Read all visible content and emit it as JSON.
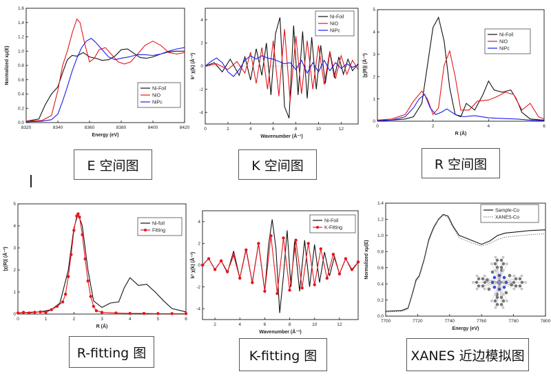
{
  "captions": [
    "E 空间图",
    "K 空间图",
    "R 空间图",
    "R-fitting 图",
    "K-fitting 图",
    "XANES 近边模拟图"
  ],
  "colors": {
    "black": "#111111",
    "red": "#e8141b",
    "blue": "#1a1aee",
    "gray": "#888888"
  },
  "chart_data": [
    {
      "type": "line",
      "xlabel": "Energy (eV)",
      "ylabel": "Normalized xμ(E)",
      "xlim": [
        8320,
        8420
      ],
      "ylim": [
        0,
        1.6
      ],
      "xticks": [
        8320,
        8340,
        8360,
        8380,
        8400,
        8420
      ],
      "yticks": [
        0,
        0.2,
        0.4,
        0.6,
        0.8,
        1.0,
        1.2,
        1.4,
        1.6
      ],
      "legend": "center-right",
      "series": [
        {
          "name": "Ni-Foil",
          "color": "#111111",
          "x": [
            8320,
            8328,
            8332,
            8336,
            8340,
            8343,
            8346,
            8349,
            8352,
            8356,
            8360,
            8364,
            8368,
            8372,
            8376,
            8380,
            8384,
            8388,
            8392,
            8396,
            8400,
            8405,
            8410,
            8415,
            8420
          ],
          "y": [
            0.02,
            0.05,
            0.25,
            0.4,
            0.5,
            0.7,
            0.88,
            0.94,
            0.93,
            0.98,
            0.92,
            0.9,
            0.87,
            0.88,
            0.93,
            1.02,
            1.03,
            0.97,
            0.91,
            0.9,
            0.92,
            0.96,
            0.99,
            1.0,
            1.0
          ]
        },
        {
          "name": "NiO",
          "color": "#e8141b",
          "x": [
            8320,
            8330,
            8336,
            8340,
            8343,
            8346,
            8349,
            8352,
            8354,
            8357,
            8360,
            8363,
            8366,
            8370,
            8374,
            8378,
            8382,
            8386,
            8390,
            8395,
            8400,
            8405,
            8410,
            8415,
            8420
          ],
          "y": [
            0.02,
            0.03,
            0.1,
            0.45,
            0.8,
            1.0,
            1.25,
            1.45,
            1.4,
            1.1,
            0.85,
            0.9,
            1.02,
            1.05,
            0.95,
            0.85,
            0.82,
            0.85,
            0.95,
            1.08,
            1.14,
            1.08,
            0.98,
            0.96,
            0.98
          ]
        },
        {
          "name": "NiPc",
          "color": "#1a1aee",
          "x": [
            8320,
            8330,
            8336,
            8340,
            8343,
            8346,
            8349,
            8352,
            8355,
            8358,
            8361,
            8364,
            8368,
            8372,
            8376,
            8380,
            8385,
            8390,
            8395,
            8400,
            8405,
            8410,
            8415,
            8420
          ],
          "y": [
            0.01,
            0.02,
            0.04,
            0.12,
            0.3,
            0.5,
            0.72,
            0.9,
            1.05,
            1.14,
            1.18,
            1.12,
            1.02,
            0.92,
            0.88,
            0.9,
            0.92,
            0.95,
            0.95,
            0.94,
            0.96,
            1.0,
            1.03,
            1.05
          ]
        }
      ]
    },
    {
      "type": "line",
      "xlabel": "Wavenumber (Å⁻¹)",
      "ylabel": "k² χ(k) (Å⁻²)",
      "xlim": [
        0,
        13.5
      ],
      "ylim": [
        -5,
        5
      ],
      "xticks": [
        0,
        2,
        4,
        6,
        8,
        10,
        12
      ],
      "yticks": [
        -4,
        -2,
        0,
        2,
        4
      ],
      "legend": "top-right",
      "series": [
        {
          "name": "Ni-Foil",
          "color": "#111111",
          "x": [
            0,
            0.8,
            1.5,
            2.2,
            3,
            3.5,
            4,
            4.5,
            5,
            5.4,
            5.8,
            6.2,
            6.6,
            7,
            7.4,
            7.8,
            8.2,
            8.6,
            9,
            9.4,
            9.8,
            10.2,
            10.6,
            11,
            11.4,
            11.8,
            12.2,
            12.6,
            13,
            13.5
          ],
          "y": [
            0,
            0.3,
            -0.5,
            0.6,
            -0.8,
            0.8,
            -1.2,
            1.5,
            -0.8,
            2.0,
            -2.5,
            2.8,
            4.2,
            -3.5,
            -4.5,
            3.5,
            -2.5,
            3.0,
            -2.8,
            2.5,
            -2.0,
            1.8,
            -1.5,
            1.2,
            -1.0,
            0.8,
            -0.7,
            0.6,
            -0.4,
            0.2
          ]
        },
        {
          "name": "NiO",
          "color": "#e8141b",
          "x": [
            0,
            1,
            2,
            2.8,
            3.5,
            4,
            4.5,
            5,
            5.5,
            6,
            6.5,
            7,
            7.5,
            8,
            8.5,
            9,
            9.5,
            10,
            10.5,
            11,
            11.5,
            12,
            12.5,
            13,
            13.5
          ],
          "y": [
            0,
            0.2,
            -0.3,
            0.4,
            -0.6,
            1.2,
            -1.5,
            1.6,
            -2.0,
            2.2,
            -2.6,
            3.2,
            -3.0,
            2.6,
            -2.4,
            2.2,
            -2.0,
            1.8,
            -1.6,
            1.3,
            -1.1,
            0.9,
            -0.7,
            0.5,
            -0.3
          ]
        },
        {
          "name": "NiPc",
          "color": "#1a1aee",
          "x": [
            0,
            0.5,
            1,
            1.5,
            2,
            2.5,
            3,
            3.5,
            4,
            4.5,
            5,
            5.5,
            6,
            6.5,
            7,
            7.5,
            8,
            8.5,
            9,
            9.5,
            10,
            10.5,
            11,
            11.5,
            12,
            12.5,
            13,
            13.5
          ],
          "y": [
            0,
            0.4,
            0.7,
            0.3,
            -0.5,
            -0.9,
            -0.3,
            0.5,
            0.9,
            0.6,
            0.9,
            0.7,
            0.6,
            0.4,
            0.2,
            0.3,
            -0.3,
            0.5,
            -0.6,
            0.3,
            -0.5,
            0.5,
            -0.4,
            0.3,
            -0.2,
            0.2,
            -0.1,
            0.1
          ]
        }
      ]
    },
    {
      "type": "line",
      "xlabel": "R (Å)",
      "ylabel": "|χ(R)| (Å⁻³)",
      "xlim": [
        0,
        6
      ],
      "ylim": [
        0,
        5
      ],
      "xticks": [
        0,
        2,
        4,
        6
      ],
      "yticks": [
        0,
        1,
        2,
        3,
        4,
        5
      ],
      "legend": "top-right",
      "series": [
        {
          "name": "Ni-Foil",
          "color": "#111111",
          "x": [
            0,
            0.5,
            1,
            1.3,
            1.6,
            1.8,
            2,
            2.2,
            2.4,
            2.6,
            2.8,
            3,
            3.2,
            3.5,
            3.8,
            4,
            4.2,
            4.5,
            4.8,
            5,
            5.2,
            5.5,
            6
          ],
          "y": [
            0.05,
            0.05,
            0.1,
            0.2,
            0.8,
            2.5,
            4.2,
            4.65,
            3.6,
            1.5,
            0.3,
            0.2,
            0.8,
            0.5,
            1.2,
            1.8,
            1.4,
            1.3,
            1.4,
            1.0,
            0.4,
            0.1,
            0.05
          ]
        },
        {
          "name": "NiO",
          "color": "#e8141b",
          "x": [
            0,
            0.5,
            1,
            1.3,
            1.6,
            1.8,
            2,
            2.2,
            2.4,
            2.6,
            2.8,
            3,
            3.3,
            3.6,
            4,
            4.3,
            4.6,
            4.9,
            5.2,
            5.5,
            5.8,
            6
          ],
          "y": [
            0.05,
            0.1,
            0.3,
            0.9,
            1.35,
            1.0,
            0.3,
            0.6,
            2.5,
            3.15,
            2.0,
            0.5,
            0.5,
            0.9,
            0.95,
            1.1,
            1.3,
            1.2,
            0.5,
            0.8,
            0.2,
            0.1
          ]
        },
        {
          "name": "NiPc",
          "color": "#1a1aee",
          "x": [
            0,
            0.5,
            1,
            1.3,
            1.5,
            1.7,
            1.9,
            2.1,
            2.3,
            2.5,
            2.8,
            3.1,
            3.5,
            4,
            4.5,
            5,
            5.5,
            6
          ],
          "y": [
            0.02,
            0.05,
            0.2,
            0.6,
            1.0,
            1.2,
            0.6,
            0.3,
            0.4,
            0.55,
            0.3,
            0.2,
            0.25,
            0.15,
            0.12,
            0.1,
            0.05,
            0.02
          ]
        }
      ]
    },
    {
      "type": "line",
      "xlabel": "R (Å)",
      "ylabel": "|χ(R)| (Å⁻³)",
      "xlim": [
        0,
        6
      ],
      "ylim": [
        0,
        5
      ],
      "xticks": [
        0,
        1,
        2,
        3,
        4,
        5,
        6
      ],
      "yticks": [
        0,
        1,
        2,
        3,
        4,
        5
      ],
      "legend": "top-right",
      "series": [
        {
          "name": "Ni-foil",
          "color": "#111111",
          "x": [
            0,
            0.4,
            0.8,
            1.2,
            1.5,
            1.8,
            2.0,
            2.15,
            2.3,
            2.5,
            2.7,
            3.0,
            3.3,
            3.6,
            3.8,
            4.0,
            4.3,
            4.6,
            4.9,
            5.2,
            5.5,
            6
          ],
          "y": [
            0.05,
            0.08,
            0.1,
            0.2,
            0.5,
            2.0,
            3.9,
            4.55,
            4.0,
            2.0,
            0.6,
            0.3,
            0.5,
            0.55,
            1.2,
            1.65,
            1.3,
            1.35,
            1.0,
            0.6,
            0.25,
            0.1
          ]
        },
        {
          "name": "Fitting",
          "color": "#e8141b",
          "x": [
            0,
            0.2,
            0.4,
            0.6,
            0.8,
            1.0,
            1.2,
            1.4,
            1.6,
            1.7,
            1.8,
            1.9,
            2.0,
            2.1,
            2.15,
            2.2,
            2.3,
            2.4,
            2.5,
            2.6,
            2.7,
            2.8,
            3.0,
            3.5,
            4.0,
            4.5,
            5.0,
            5.5,
            6.0
          ],
          "y": [
            0.05,
            0.08,
            0.05,
            0.08,
            0.1,
            0.08,
            0.2,
            0.35,
            0.55,
            0.9,
            1.7,
            2.7,
            3.8,
            4.45,
            4.55,
            4.4,
            3.6,
            2.5,
            1.5,
            0.8,
            0.35,
            0.15,
            0.08,
            0.05,
            0.03,
            0.03,
            0.02,
            0.02,
            0.02
          ]
        }
      ]
    },
    {
      "type": "line",
      "xlabel": "Wavenumber (Å⁻¹)",
      "ylabel": "k² χ(k) (Å⁻²)",
      "xlim": [
        1,
        13.5
      ],
      "ylim": [
        -5,
        5
      ],
      "xticks": [
        2,
        4,
        6,
        8,
        10,
        12
      ],
      "yticks": [
        -4,
        -2,
        0,
        2,
        4
      ],
      "legend": "top-right",
      "series": [
        {
          "name": "Ni-Foil",
          "color": "#111111",
          "x": [
            1,
            1.5,
            2,
            2.5,
            3,
            3.5,
            4,
            4.5,
            5,
            5.5,
            6,
            6.3,
            6.6,
            6.9,
            7.2,
            7.5,
            7.8,
            8.1,
            8.4,
            8.8,
            9.2,
            9.6,
            10,
            10.4,
            10.8,
            11.2,
            11.6,
            12,
            12.5,
            13,
            13.5
          ],
          "y": [
            0,
            0.6,
            -0.4,
            0.4,
            -0.7,
            1.3,
            -1.2,
            1.5,
            -1.6,
            2.0,
            -2.4,
            1.8,
            4.2,
            1.5,
            -4.4,
            -1.0,
            3.2,
            -2.0,
            2.2,
            -2.4,
            2.3,
            -2.0,
            1.9,
            -1.6,
            1.2,
            -1.0,
            0.8,
            -0.8,
            0.6,
            -0.5,
            0.3
          ]
        },
        {
          "name": "K-Fitting",
          "color": "#e8141b",
          "x": [
            1,
            1.5,
            2,
            2.5,
            3,
            3.5,
            4,
            4.5,
            5,
            5.5,
            6,
            6.5,
            7,
            7.5,
            8,
            8.5,
            9,
            9.5,
            10,
            10.5,
            11,
            11.5,
            12,
            12.5,
            13,
            13.5
          ],
          "y": [
            0,
            0.6,
            -0.4,
            0.4,
            -0.6,
            0.9,
            -1.2,
            1.4,
            -1.6,
            2.0,
            -2.4,
            2.7,
            -2.6,
            2.5,
            -2.3,
            2.3,
            -2.1,
            2.0,
            -1.8,
            1.5,
            -1.2,
            1.0,
            -0.8,
            0.6,
            -0.4,
            0.3
          ]
        }
      ]
    },
    {
      "type": "line",
      "xlabel": "Energy (eV)",
      "ylabel": "Normalized xμ(E)",
      "xlim": [
        7700,
        7800
      ],
      "ylim": [
        0,
        1.4
      ],
      "xticks": [
        7700,
        7720,
        7740,
        7760,
        7780,
        7800
      ],
      "yticks": [
        0,
        0.2,
        0.4,
        0.6,
        0.8,
        1.0,
        1.2,
        1.4
      ],
      "legend": "top-right",
      "series": [
        {
          "name": "Sample-Co",
          "color": "#111111",
          "x": [
            7700,
            7710,
            7714,
            7717,
            7719,
            7721,
            7724,
            7727,
            7730,
            7733,
            7736,
            7739,
            7742,
            7746,
            7750,
            7755,
            7760,
            7765,
            7770,
            7775,
            7780,
            7790,
            7800
          ],
          "y": [
            0.06,
            0.07,
            0.1,
            0.3,
            0.45,
            0.5,
            0.7,
            0.95,
            1.1,
            1.2,
            1.26,
            1.24,
            1.12,
            1.0,
            0.97,
            0.93,
            0.89,
            0.93,
            1.0,
            1.03,
            1.04,
            1.06,
            1.07
          ]
        },
        {
          "name": "XANES-Co",
          "color": "#888888",
          "dashed": true,
          "x": [
            7700,
            7710,
            7714,
            7717,
            7719,
            7721,
            7724,
            7727,
            7730,
            7733,
            7736,
            7739,
            7742,
            7746,
            7750,
            7755,
            7760,
            7765,
            7770,
            7775,
            7780,
            7790,
            7800
          ],
          "y": [
            0.05,
            0.06,
            0.09,
            0.28,
            0.43,
            0.48,
            0.68,
            0.93,
            1.08,
            1.19,
            1.25,
            1.22,
            1.1,
            0.97,
            0.94,
            0.9,
            0.87,
            0.9,
            0.95,
            0.98,
            0.99,
            1.01,
            1.02
          ]
        }
      ]
    }
  ]
}
